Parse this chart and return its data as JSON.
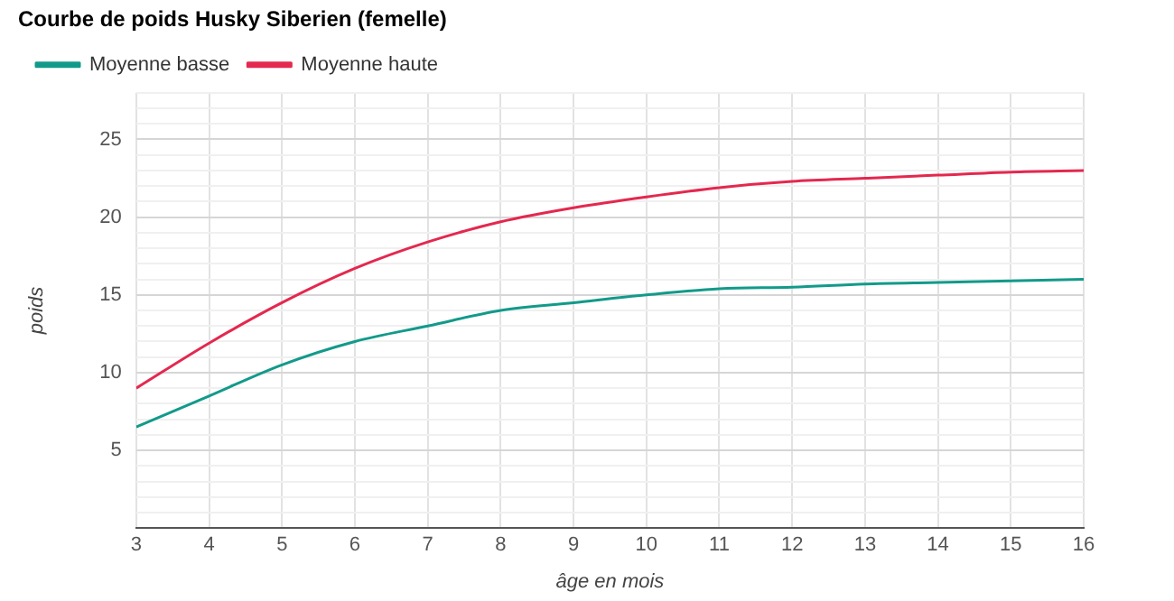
{
  "chart_data": {
    "type": "line",
    "title": "Courbe de poids Husky Siberien (femelle)",
    "xlabel": "âge en mois",
    "ylabel": "poids",
    "x": [
      3,
      4,
      5,
      6,
      7,
      8,
      9,
      10,
      11,
      12,
      13,
      14,
      15,
      16
    ],
    "series": [
      {
        "name": "Moyenne basse",
        "color": "#129a8a",
        "values": [
          6.5,
          8.5,
          10.5,
          12,
          13,
          14,
          14.5,
          15,
          15.4,
          15.5,
          15.7,
          15.8,
          15.9,
          16
        ]
      },
      {
        "name": "Moyenne haute",
        "color": "#e4284f",
        "values": [
          9,
          11.9,
          14.5,
          16.7,
          18.4,
          19.7,
          20.6,
          21.3,
          21.9,
          22.3,
          22.5,
          22.7,
          22.9,
          23
        ]
      }
    ],
    "xlim": [
      3,
      16
    ],
    "xticks": [
      3,
      4,
      5,
      6,
      7,
      8,
      9,
      10,
      11,
      12,
      13,
      14,
      15,
      16
    ],
    "ylim": [
      0,
      28
    ],
    "yticks": [
      {
        "value": 0,
        "label": null
      },
      {
        "value": 1,
        "label": null
      },
      {
        "value": 2,
        "label": null
      },
      {
        "value": 3,
        "label": null
      },
      {
        "value": 4,
        "label": null
      },
      5,
      {
        "value": 6,
        "label": null
      },
      {
        "value": 7,
        "label": null
      },
      {
        "value": 8,
        "label": null
      },
      {
        "value": 9,
        "label": null
      },
      10,
      {
        "value": 11,
        "label": null
      },
      {
        "value": 12,
        "label": null
      },
      {
        "value": 13,
        "label": null
      },
      {
        "value": 14,
        "label": null
      },
      15,
      {
        "value": 16,
        "label": null
      },
      {
        "value": 17,
        "label": null
      },
      {
        "value": 18,
        "label": null
      },
      {
        "value": 19,
        "label": null
      },
      20,
      {
        "value": 21,
        "label": null
      },
      {
        "value": 22,
        "label": null
      },
      {
        "value": 23,
        "label": null
      },
      {
        "value": 24,
        "label": null
      },
      25,
      {
        "value": 26,
        "label": null
      },
      {
        "value": 27,
        "label": null
      },
      {
        "value": 28,
        "label": null
      }
    ],
    "grid": true,
    "legend": "top left",
    "marker": "none",
    "line_style": "solid"
  }
}
